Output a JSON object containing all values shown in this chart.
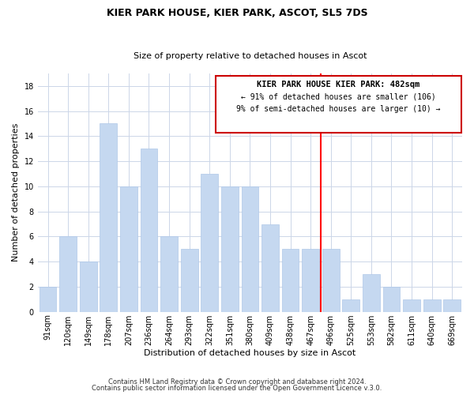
{
  "title": "KIER PARK HOUSE, KIER PARK, ASCOT, SL5 7DS",
  "subtitle": "Size of property relative to detached houses in Ascot",
  "xlabel": "Distribution of detached houses by size in Ascot",
  "ylabel": "Number of detached properties",
  "bar_labels": [
    "91sqm",
    "120sqm",
    "149sqm",
    "178sqm",
    "207sqm",
    "236sqm",
    "264sqm",
    "293sqm",
    "322sqm",
    "351sqm",
    "380sqm",
    "409sqm",
    "438sqm",
    "467sqm",
    "496sqm",
    "525sqm",
    "553sqm",
    "582sqm",
    "611sqm",
    "640sqm",
    "669sqm"
  ],
  "bar_values": [
    2,
    6,
    4,
    15,
    10,
    13,
    6,
    5,
    11,
    10,
    10,
    7,
    5,
    5,
    5,
    1,
    3,
    2,
    1,
    1,
    1
  ],
  "bar_color": "#c5d8f0",
  "bar_edge_color": "#afc8e8",
  "marker_line_color": "#ff0000",
  "annotation_title": "KIER PARK HOUSE KIER PARK: 482sqm",
  "annotation_line1": "← 91% of detached houses are smaller (106)",
  "annotation_line2": "9% of semi-detached houses are larger (10) →",
  "annotation_box_color": "#ffffff",
  "annotation_box_edge_color": "#cc0000",
  "footer_line1": "Contains HM Land Registry data © Crown copyright and database right 2024.",
  "footer_line2": "Contains public sector information licensed under the Open Government Licence v.3.0.",
  "ylim": [
    0,
    19
  ],
  "yticks": [
    0,
    2,
    4,
    6,
    8,
    10,
    12,
    14,
    16,
    18
  ],
  "background_color": "#ffffff",
  "grid_color": "#ccd6e8",
  "figsize": [
    6.0,
    5.0
  ],
  "dpi": 100,
  "title_fontsize": 9,
  "subtitle_fontsize": 8,
  "xlabel_fontsize": 8,
  "ylabel_fontsize": 8,
  "tick_fontsize": 7,
  "annotation_title_fontsize": 7.5,
  "annotation_text_fontsize": 7,
  "footer_fontsize": 6
}
